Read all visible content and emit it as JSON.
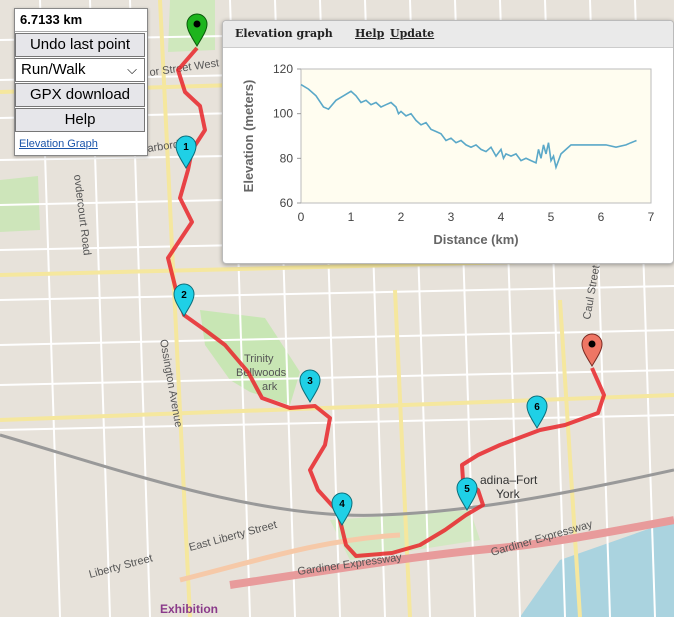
{
  "controls": {
    "distance": "6.7133 km",
    "undo_label": "Undo last point",
    "mode_selected": "Run/Walk",
    "gpx_label": "GPX download",
    "help_label": "Help",
    "elevation_link": "Elevation Graph"
  },
  "elevation_panel": {
    "title": "Elevation graph",
    "help_link": "Help",
    "update_link": "Update"
  },
  "chart_data": {
    "type": "line",
    "xlabel": "Distance (km)",
    "ylabel": "Elevation (meters)",
    "xlim": [
      0,
      7
    ],
    "ylim": [
      60,
      120
    ],
    "xticks": [
      0,
      1,
      2,
      3,
      4,
      5,
      6,
      7
    ],
    "yticks": [
      60,
      80,
      100,
      120
    ],
    "line_color": "#5aa8c8",
    "plot_background": "#fffdf0",
    "x": [
      0,
      0.15,
      0.3,
      0.45,
      0.55,
      0.7,
      0.85,
      1.0,
      1.1,
      1.2,
      1.3,
      1.4,
      1.5,
      1.6,
      1.7,
      1.8,
      1.9,
      1.95,
      2.0,
      2.1,
      2.2,
      2.3,
      2.4,
      2.5,
      2.6,
      2.7,
      2.8,
      2.9,
      3.0,
      3.1,
      3.2,
      3.3,
      3.4,
      3.5,
      3.6,
      3.7,
      3.8,
      3.9,
      4.0,
      4.05,
      4.1,
      4.2,
      4.3,
      4.4,
      4.5,
      4.6,
      4.7,
      4.75,
      4.8,
      4.85,
      4.9,
      4.95,
      5.0,
      5.05,
      5.1,
      5.15,
      5.2,
      5.3,
      5.4,
      5.5,
      5.7,
      5.9,
      6.1,
      6.3,
      6.5,
      6.6,
      6.71
    ],
    "y": [
      113,
      111,
      108,
      103,
      102,
      106,
      108,
      110,
      108,
      105,
      106,
      104,
      105,
      103,
      104,
      105,
      103,
      100,
      101,
      99,
      100,
      97,
      95,
      96,
      93,
      92,
      91,
      88,
      89,
      87,
      88,
      86,
      85,
      86,
      84,
      83,
      85,
      81,
      84,
      80,
      82,
      81,
      82,
      79,
      80,
      79,
      78,
      84,
      80,
      86,
      82,
      87,
      79,
      81,
      76,
      79,
      82,
      84,
      86,
      86,
      86,
      86,
      86,
      85,
      86,
      87,
      88
    ]
  },
  "route": {
    "markers": [
      "1",
      "2",
      "3",
      "4",
      "5",
      "6"
    ],
    "start_color": "#1db41d",
    "end_color": "#e8584a",
    "waypoint_color": "#1fd0e6",
    "route_color": "#e8262a"
  },
  "map_labels": {
    "bloor": "or Street West",
    "harbord": "arbord St",
    "ossington": "Ossington Avenue",
    "dovercourt": "ovdercourt Road",
    "trinity": "Trinity",
    "bellwoods": "Bellwoods",
    "park": "ark",
    "spadina": "adina–Fort",
    "york": "York",
    "liberty": "Liberty Street",
    "east_liberty": "East Liberty Street",
    "gardiner1": "Gardiner Expressway",
    "gardiner2": "Gardiner Expressway",
    "exhibition": "Exhibition",
    "caul": "Caul Street"
  }
}
